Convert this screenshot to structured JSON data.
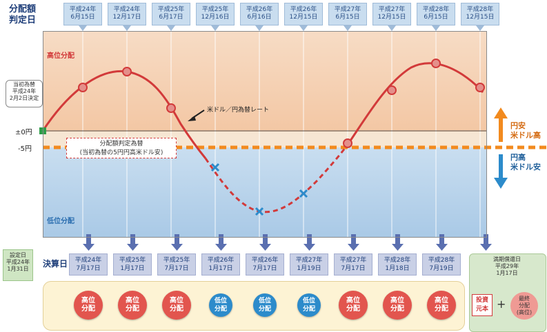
{
  "header": {
    "determination_label_line1": "分配額",
    "determination_label_line2": "判定日",
    "determination_dates": [
      {
        "era": "平成24年",
        "date": "6月15日"
      },
      {
        "era": "平成24年",
        "date": "12月17日"
      },
      {
        "era": "平成25年",
        "date": "6月17日"
      },
      {
        "era": "平成25年",
        "date": "12月16日"
      },
      {
        "era": "平成26年",
        "date": "6月16日"
      },
      {
        "era": "平成26年",
        "date": "12月15日"
      },
      {
        "era": "平成27年",
        "date": "6月15日"
      },
      {
        "era": "平成27年",
        "date": "12月15日"
      },
      {
        "era": "平成28年",
        "date": "6月15日"
      },
      {
        "era": "平成28年",
        "date": "12月15日"
      }
    ]
  },
  "chart": {
    "upper_band_title": "高位分配",
    "lower_band_title": "低位分配",
    "y_zero_label": "±0円",
    "y_minus5_label": "-5円",
    "initial_rate_box": {
      "line1": "当初為替",
      "line2": "平成24年",
      "line3": "2月2日決定"
    },
    "determination_rate_box": {
      "line1": "分配額判定為替",
      "line2": "(当初為替の5円円高米ドル安)"
    },
    "curve_label": "米ドル／円為替レート",
    "up_label": {
      "line1": "円安",
      "line2": "米ドル高"
    },
    "down_label": {
      "line1": "円高",
      "line2": "米ドル安"
    },
    "colors": {
      "high": "#d23a3a",
      "low": "#2c8bcb",
      "threshold": "#f28a1e",
      "up_arrow": "#f28a1e",
      "down_arrow": "#2c8bcb"
    }
  },
  "settlement": {
    "label": "決算日",
    "left_box": {
      "line1": "設定日",
      "line2": "平成24年",
      "line3": "1月31日"
    },
    "dates": [
      {
        "era": "平成24年",
        "date": "7月17日"
      },
      {
        "era": "平成25年",
        "date": "1月17日"
      },
      {
        "era": "平成25年",
        "date": "7月17日"
      },
      {
        "era": "平成26年",
        "date": "1月17日"
      },
      {
        "era": "平成26年",
        "date": "7月17日"
      },
      {
        "era": "平成27年",
        "date": "1月19日"
      },
      {
        "era": "平成27年",
        "date": "7月17日"
      },
      {
        "era": "平成28年",
        "date": "1月18日"
      },
      {
        "era": "平成28年",
        "date": "7月19日"
      }
    ]
  },
  "distributions": [
    {
      "line1": "高位",
      "line2": "分配",
      "kind": "high"
    },
    {
      "line1": "高位",
      "line2": "分配",
      "kind": "high"
    },
    {
      "line1": "高位",
      "line2": "分配",
      "kind": "high"
    },
    {
      "line1": "低位",
      "line2": "分配",
      "kind": "low"
    },
    {
      "line1": "低位",
      "line2": "分配",
      "kind": "low"
    },
    {
      "line1": "低位",
      "line2": "分配",
      "kind": "low"
    },
    {
      "line1": "高位",
      "line2": "分配",
      "kind": "high"
    },
    {
      "line1": "高位",
      "line2": "分配",
      "kind": "high"
    },
    {
      "line1": "高位",
      "line2": "分配",
      "kind": "high"
    }
  ],
  "final": {
    "title_line1": "満期償還日",
    "title_line2": "平成29年",
    "title_line3": "1月17日",
    "principal_line1": "投資",
    "principal_line2": "元本",
    "plus": "+",
    "final_circle_line1": "最終",
    "final_circle_line2": "分配",
    "final_circle_line3": "(高位)"
  }
}
